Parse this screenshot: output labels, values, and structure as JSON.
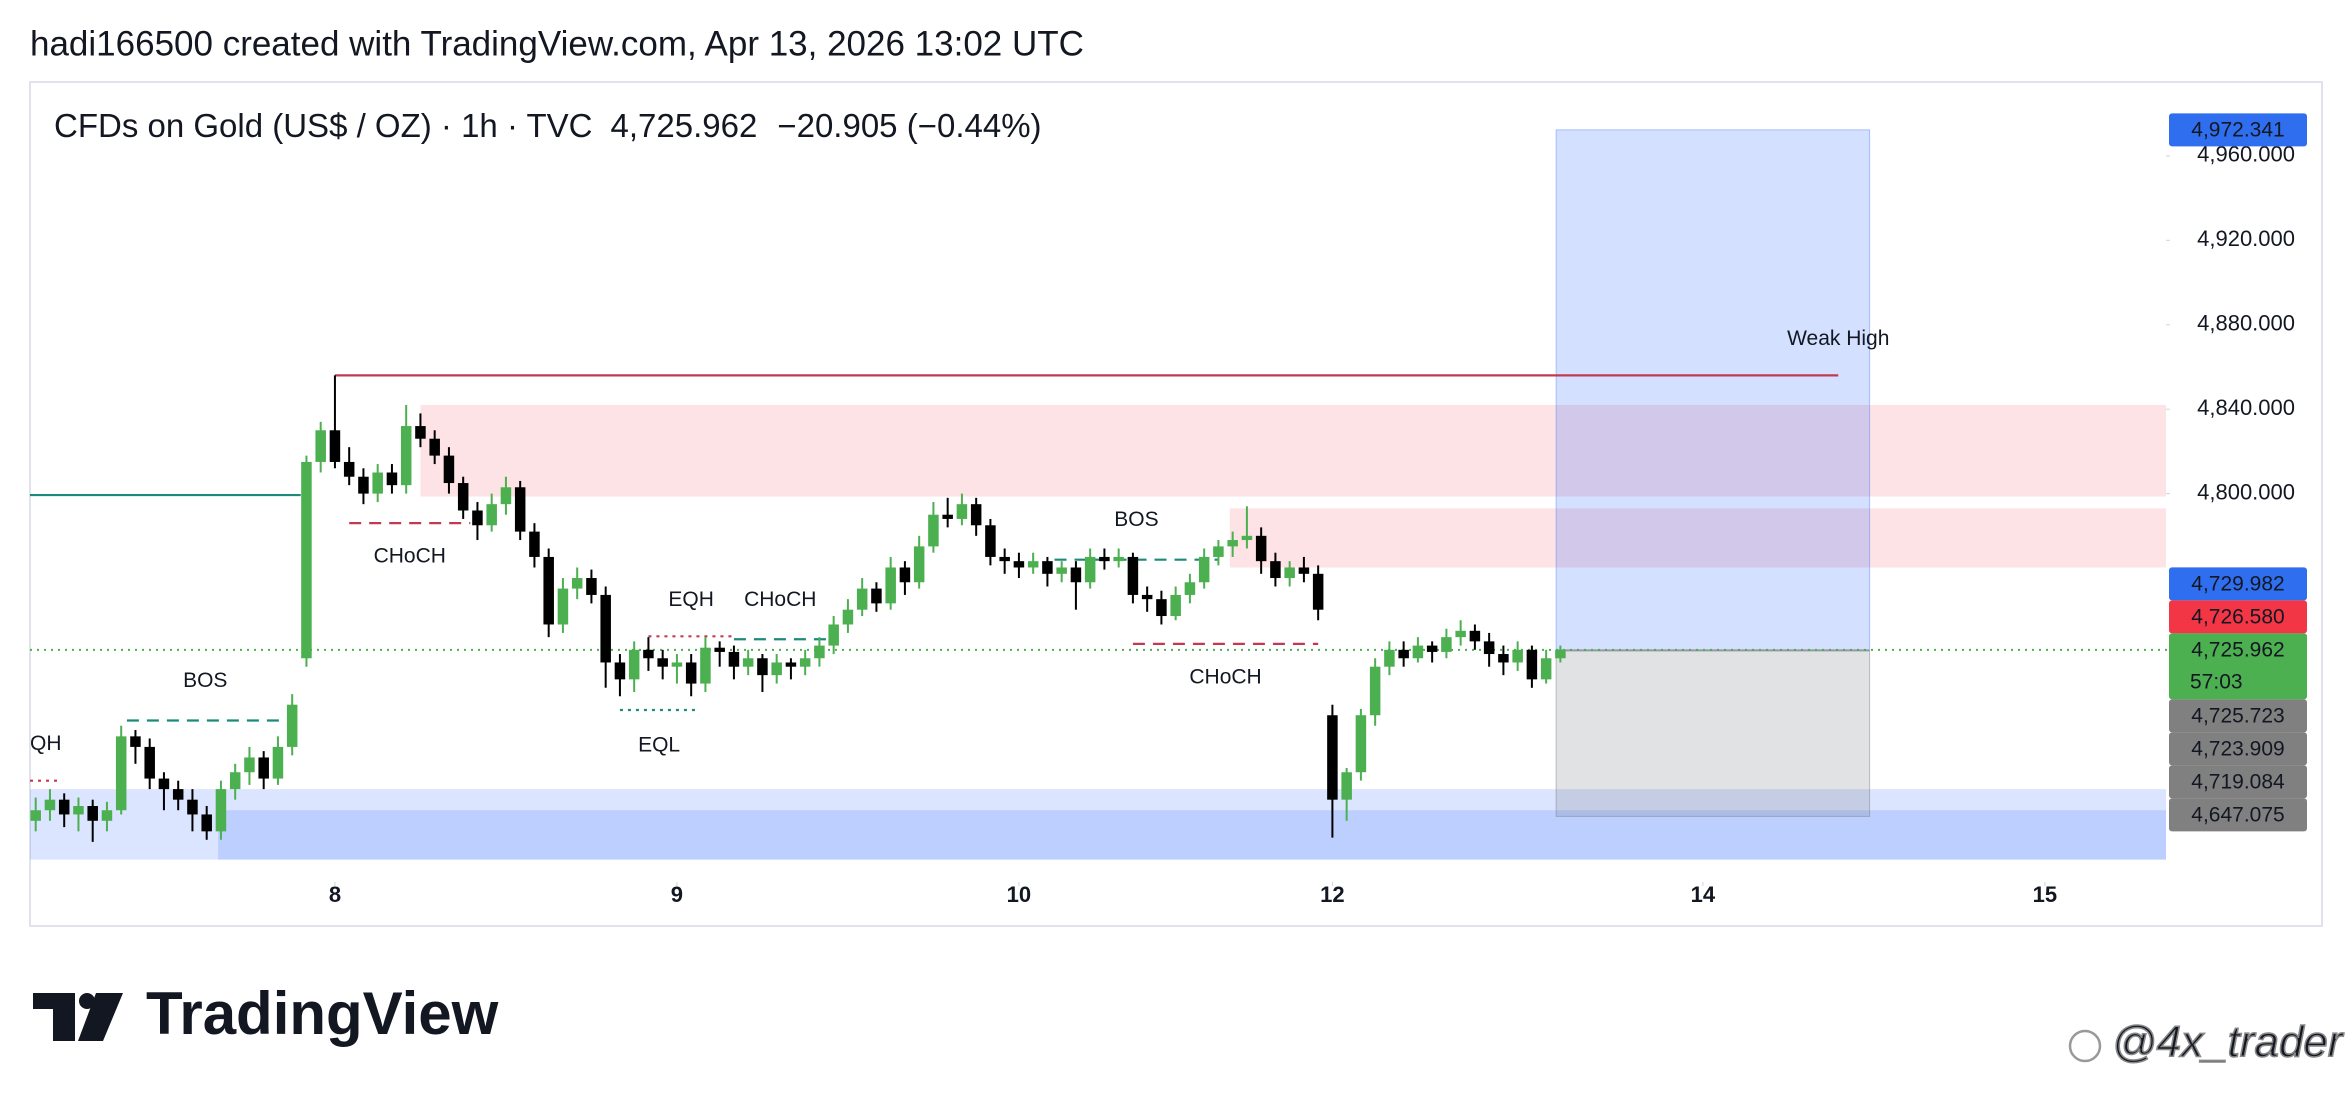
{
  "header": "hadi166500 created with TradingView.com, Apr 13, 2026 13:02 UTC",
  "chart_data": {
    "type": "candlestick",
    "title": "CFDs on Gold (US$ / OZ) · 1h · TVC",
    "last_price": "4,725.962",
    "change": "−20.905 (−0.44%)",
    "xlim": [
      -21.4,
      128.5
    ],
    "ylim": [
      4616,
      4995
    ],
    "xticks": [
      {
        "value": 0,
        "label": "8"
      },
      {
        "value": 24,
        "label": "9"
      },
      {
        "value": 48,
        "label": "10"
      },
      {
        "value": 70,
        "label": "12"
      },
      {
        "value": 96,
        "label": "14"
      },
      {
        "value": 120,
        "label": "15"
      }
    ],
    "yticks": [
      {
        "value": 4960,
        "label": "4,960.000"
      },
      {
        "value": 4920,
        "label": "4,920.000"
      },
      {
        "value": 4880,
        "label": "4,880.000"
      },
      {
        "value": 4840,
        "label": "4,840.000"
      },
      {
        "value": 4800,
        "label": "4,800.000"
      }
    ],
    "x": [
      -21,
      -20,
      -19,
      -18,
      -17,
      -16,
      -15,
      -14,
      -13,
      -12,
      -11,
      -10,
      -9,
      -8,
      -7,
      -6,
      -5,
      -4,
      -3,
      -2,
      -1,
      0,
      1,
      2,
      3,
      4,
      5,
      6,
      7,
      8,
      9,
      10,
      11,
      12,
      13,
      14,
      15,
      16,
      17,
      18,
      19,
      20,
      21,
      22,
      23,
      24,
      25,
      26,
      27,
      28,
      29,
      30,
      31,
      32,
      33,
      34,
      35,
      36,
      37,
      38,
      39,
      40,
      41,
      42,
      43,
      44,
      45,
      46,
      47,
      48,
      49,
      50,
      51,
      52,
      53,
      54,
      55,
      56,
      57,
      58,
      59,
      60,
      61,
      62,
      63,
      64,
      65,
      66,
      67,
      68,
      69,
      70,
      71,
      72,
      73,
      74,
      75,
      76,
      77,
      78,
      79,
      80,
      81,
      82,
      83,
      84,
      85,
      86
    ],
    "series": [
      {
        "up_color": "#4caf50",
        "down_color": "#000000",
        "values": [
          [
            4645,
            4656,
            4640,
            4650
          ],
          [
            4650,
            4660,
            4645,
            4655
          ],
          [
            4655,
            4658,
            4642,
            4648
          ],
          [
            4648,
            4656,
            4640,
            4652
          ],
          [
            4652,
            4655,
            4635,
            4645
          ],
          [
            4645,
            4654,
            4640,
            4650
          ],
          [
            4650,
            4690,
            4648,
            4685
          ],
          [
            4685,
            4688,
            4672,
            4680
          ],
          [
            4680,
            4684,
            4660,
            4665
          ],
          [
            4665,
            4668,
            4650,
            4660
          ],
          [
            4660,
            4664,
            4650,
            4655
          ],
          [
            4655,
            4660,
            4640,
            4648
          ],
          [
            4648,
            4652,
            4636,
            4640
          ],
          [
            4640,
            4664,
            4636,
            4660
          ],
          [
            4660,
            4672,
            4655,
            4668
          ],
          [
            4668,
            4680,
            4662,
            4675
          ],
          [
            4675,
            4678,
            4660,
            4665
          ],
          [
            4665,
            4685,
            4662,
            4680
          ],
          [
            4680,
            4705,
            4676,
            4700
          ],
          [
            4722,
            4818,
            4718,
            4815
          ],
          [
            4815,
            4834,
            4810,
            4830
          ],
          [
            4830,
            4856,
            4812,
            4815
          ],
          [
            4815,
            4822,
            4804,
            4808
          ],
          [
            4808,
            4812,
            4795,
            4800
          ],
          [
            4800,
            4814,
            4796,
            4810
          ],
          [
            4810,
            4814,
            4800,
            4804
          ],
          [
            4804,
            4842,
            4800,
            4832
          ],
          [
            4832,
            4838,
            4822,
            4826
          ],
          [
            4826,
            4830,
            4814,
            4818
          ],
          [
            4818,
            4822,
            4800,
            4805
          ],
          [
            4805,
            4808,
            4788,
            4792
          ],
          [
            4792,
            4796,
            4778,
            4785
          ],
          [
            4785,
            4800,
            4782,
            4795
          ],
          [
            4795,
            4808,
            4790,
            4803
          ],
          [
            4803,
            4806,
            4778,
            4782
          ],
          [
            4782,
            4786,
            4765,
            4770
          ],
          [
            4770,
            4774,
            4732,
            4738
          ],
          [
            4738,
            4760,
            4734,
            4755
          ],
          [
            4755,
            4765,
            4750,
            4760
          ],
          [
            4760,
            4764,
            4748,
            4752
          ],
          [
            4752,
            4756,
            4708,
            4720
          ],
          [
            4720,
            4724,
            4704,
            4712
          ],
          [
            4712,
            4730,
            4706,
            4726
          ],
          [
            4726,
            4732,
            4716,
            4722
          ],
          [
            4722,
            4726,
            4712,
            4718
          ],
          [
            4718,
            4724,
            4710,
            4720
          ],
          [
            4720,
            4724,
            4704,
            4710
          ],
          [
            4710,
            4732,
            4706,
            4727
          ],
          [
            4727,
            4730,
            4718,
            4725
          ],
          [
            4725,
            4728,
            4712,
            4718
          ],
          [
            4718,
            4726,
            4714,
            4722
          ],
          [
            4722,
            4724,
            4706,
            4714
          ],
          [
            4714,
            4724,
            4710,
            4720
          ],
          [
            4720,
            4722,
            4712,
            4718
          ],
          [
            4718,
            4726,
            4714,
            4722
          ],
          [
            4722,
            4732,
            4718,
            4728
          ],
          [
            4728,
            4742,
            4724,
            4738
          ],
          [
            4738,
            4750,
            4734,
            4745
          ],
          [
            4745,
            4760,
            4742,
            4755
          ],
          [
            4755,
            4758,
            4744,
            4748
          ],
          [
            4748,
            4770,
            4745,
            4765
          ],
          [
            4765,
            4768,
            4752,
            4758
          ],
          [
            4758,
            4780,
            4755,
            4775
          ],
          [
            4775,
            4796,
            4772,
            4790
          ],
          [
            4790,
            4798,
            4784,
            4788
          ],
          [
            4788,
            4800,
            4785,
            4795
          ],
          [
            4795,
            4798,
            4780,
            4785
          ],
          [
            4785,
            4788,
            4766,
            4770
          ],
          [
            4770,
            4774,
            4762,
            4768
          ],
          [
            4768,
            4772,
            4760,
            4765
          ],
          [
            4765,
            4772,
            4762,
            4768
          ],
          [
            4768,
            4770,
            4756,
            4762
          ],
          [
            4762,
            4768,
            4758,
            4765
          ],
          [
            4765,
            4768,
            4745,
            4758
          ],
          [
            4758,
            4774,
            4755,
            4770
          ],
          [
            4770,
            4774,
            4764,
            4768
          ],
          [
            4768,
            4774,
            4765,
            4770
          ],
          [
            4770,
            4772,
            4748,
            4752
          ],
          [
            4752,
            4756,
            4744,
            4750
          ],
          [
            4750,
            4754,
            4738,
            4742
          ],
          [
            4742,
            4756,
            4740,
            4752
          ],
          [
            4752,
            4762,
            4748,
            4758
          ],
          [
            4758,
            4774,
            4755,
            4770
          ],
          [
            4770,
            4778,
            4766,
            4775
          ],
          [
            4775,
            4782,
            4770,
            4778
          ],
          [
            4778,
            4794,
            4774,
            4780
          ],
          [
            4780,
            4784,
            4762,
            4768
          ],
          [
            4768,
            4772,
            4756,
            4760
          ],
          [
            4760,
            4768,
            4756,
            4765
          ],
          [
            4765,
            4770,
            4758,
            4762
          ],
          [
            4762,
            4766,
            4740,
            4745
          ],
          [
            4695,
            4700,
            4637,
            4655
          ],
          [
            4655,
            4670,
            4645,
            4668
          ],
          [
            4668,
            4698,
            4664,
            4695
          ],
          [
            4695,
            4722,
            4690,
            4718
          ],
          [
            4718,
            4730,
            4714,
            4726
          ],
          [
            4726,
            4730,
            4718,
            4722
          ],
          [
            4722,
            4732,
            4720,
            4728
          ],
          [
            4728,
            4730,
            4720,
            4725
          ],
          [
            4725,
            4736,
            4722,
            4732
          ],
          [
            4732,
            4740,
            4728,
            4735
          ],
          [
            4735,
            4738,
            4726,
            4730
          ],
          [
            4730,
            4734,
            4718,
            4724
          ],
          [
            4724,
            4728,
            4714,
            4720
          ],
          [
            4720,
            4730,
            4716,
            4726
          ],
          [
            4726,
            4728,
            4708,
            4712
          ],
          [
            4712,
            4726,
            4710,
            4722
          ],
          [
            4722,
            4728,
            4720,
            4725.962
          ]
        ]
      }
    ],
    "zones": [
      {
        "from": 6,
        "to": 128.5,
        "low": 4798.6,
        "high": 4842,
        "color": "rgba(242,54,69,0.14)"
      },
      {
        "from": 62.8,
        "to": 128.5,
        "low": 4765,
        "high": 4793,
        "color": "rgba(242,54,69,0.14)"
      },
      {
        "from": -21.4,
        "to": 128.5,
        "low": 4626.6,
        "high": 4660,
        "color": "rgba(41,98,255,0.17)"
      },
      {
        "from": -8.2,
        "to": 128.5,
        "low": 4626.6,
        "high": 4650,
        "color": "rgba(41,98,255,0.17)"
      }
    ],
    "position": {
      "from": 85.7,
      "to": 107.7,
      "entry": 4725.723,
      "stop": 4647.075,
      "target": 4972.341,
      "target_color": "rgba(41,98,255,0.2)",
      "stop_color": "rgba(120,123,134,0.22)"
    },
    "annotations": [
      {
        "label": "QH",
        "price": 4664,
        "from": -21.4,
        "to": -19.5,
        "color": "#c23a52",
        "style": "dotted"
      },
      {
        "label": "BOS",
        "price": 4692.5,
        "from": -14.6,
        "to": -3.6,
        "color": "#1b8a7a",
        "style": "dashed"
      },
      {
        "label": "CHoCH",
        "price": 4786,
        "from": 1,
        "to": 9.5,
        "color": "#c23a52",
        "style": "dashed"
      },
      {
        "label": "EQL",
        "price": 4697.5,
        "from": 20,
        "to": 25.5,
        "color": "#1b8a7a",
        "style": "dotted"
      },
      {
        "label": "EQH",
        "price": 4732.4,
        "from": 22,
        "to": 28,
        "color": "#c23a52",
        "style": "dotted"
      },
      {
        "label": "CHoCH",
        "price": 4731,
        "from": 28,
        "to": 34.5,
        "color": "#1b8a7a",
        "style": "dashed"
      },
      {
        "label": "BOS",
        "price": 4768.7,
        "from": 50.5,
        "to": 62,
        "color": "#1b8a7a",
        "style": "dashed"
      },
      {
        "label": "CHoCH",
        "price": 4728.8,
        "from": 56,
        "to": 69,
        "color": "#c23a52",
        "style": "dashed"
      },
      {
        "label": "Weak High",
        "price": 4856,
        "from": 0,
        "to": 105.5,
        "color": "#c23a52",
        "style": "solid"
      },
      {
        "price": 4799.3,
        "from": -21.4,
        "to": -2.4,
        "color": "#1b8a7a",
        "style": "solid"
      }
    ],
    "price_labels": [
      {
        "value": 4972.341,
        "label": "4,972.341",
        "color": "#2f6fef"
      },
      {
        "value": 4729.982,
        "label": "4,729.982",
        "color": "#2f6fef"
      },
      {
        "value": 4726.58,
        "label": "4,726.580",
        "color": "#f23645"
      },
      {
        "value": 4725.962,
        "label": "4,725.962",
        "color": "#4caf50",
        "countdown": "57:03"
      },
      {
        "value": 4725.723,
        "label": "4,725.723",
        "color": "#808080"
      },
      {
        "value": 4723.909,
        "label": "4,723.909",
        "color": "#808080"
      },
      {
        "value": 4719.084,
        "label": "4,719.084",
        "color": "#808080"
      },
      {
        "value": 4647.075,
        "label": "4,647.075",
        "color": "#808080"
      }
    ]
  },
  "logo": "TradingView",
  "watermark": "@4x_trader"
}
